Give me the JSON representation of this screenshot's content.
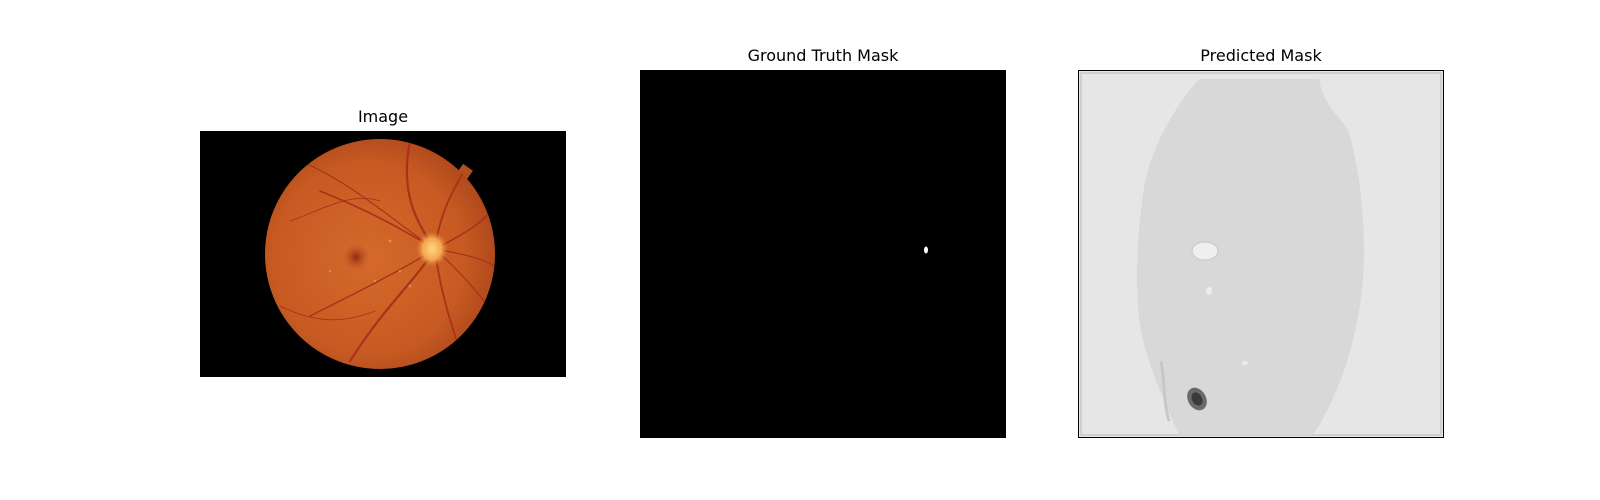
{
  "panels": [
    {
      "title": "Image"
    },
    {
      "title": "Ground Truth Mask"
    },
    {
      "title": "Predicted Mask"
    }
  ],
  "colors": {
    "background": "#ffffff",
    "fundus_base": "#c8602a",
    "fundus_dark": "#9a3e14",
    "vessel": "#a8321a",
    "optic_disc": "#f6b35e",
    "mask_background": "#000000",
    "mask_foreground": "#ffffff",
    "pred_outer": "#e6e6e6",
    "pred_inner": "#d8d8d8",
    "pred_lesion": "#3a3a3a"
  }
}
